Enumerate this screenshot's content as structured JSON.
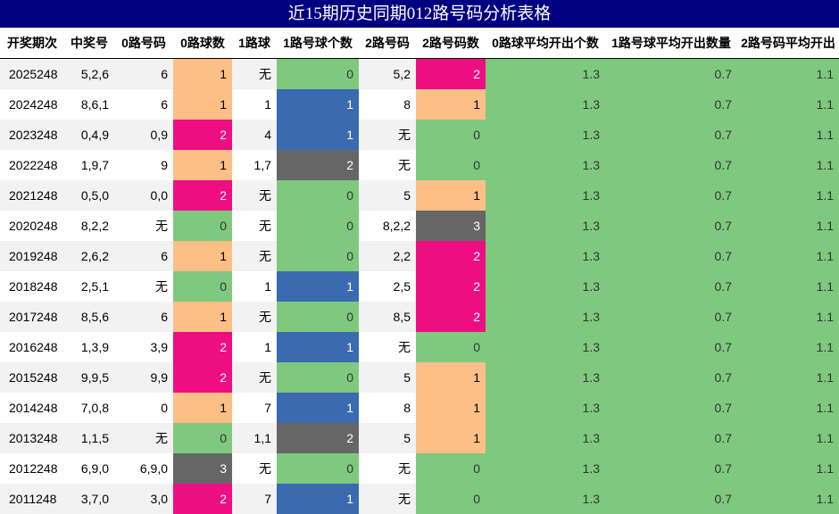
{
  "title": "近15期历史同期012路号码分析表格",
  "columns": [
    "开奖期次",
    "中奖号",
    "0路号码",
    "0路球数",
    "1路球",
    "1路号球个数",
    "2路号码",
    "2路号码数",
    "0路球平均开出个数",
    "1路号球平均开出数量",
    "2路号码平均开出"
  ],
  "colors": {
    "green": "#7ec97e",
    "peach": "#fdbf86",
    "pink": "#ee0e82",
    "blue": "#3a6ab0",
    "gray": "#666666",
    "header": "#000080"
  },
  "rows": [
    {
      "period": "2025248",
      "win": "5,2,6",
      "r0": "6",
      "c0": "1",
      "r1": "无",
      "c1": "0",
      "r2": "5,2",
      "c2": "2",
      "a0": "1.3",
      "a1": "0.7",
      "a2": "1.1"
    },
    {
      "period": "2024248",
      "win": "8,6,1",
      "r0": "6",
      "c0": "1",
      "r1": "1",
      "c1": "1",
      "r2": "8",
      "c2": "1",
      "a0": "1.3",
      "a1": "0.7",
      "a2": "1.1"
    },
    {
      "period": "2023248",
      "win": "0,4,9",
      "r0": "0,9",
      "c0": "2",
      "r1": "4",
      "c1": "1",
      "r2": "无",
      "c2": "0",
      "a0": "1.3",
      "a1": "0.7",
      "a2": "1.1"
    },
    {
      "period": "2022248",
      "win": "1,9,7",
      "r0": "9",
      "c0": "1",
      "r1": "1,7",
      "c1": "2",
      "r2": "无",
      "c2": "0",
      "a0": "1.3",
      "a1": "0.7",
      "a2": "1.1"
    },
    {
      "period": "2021248",
      "win": "0,5,0",
      "r0": "0,0",
      "c0": "2",
      "r1": "无",
      "c1": "0",
      "r2": "5",
      "c2": "1",
      "a0": "1.3",
      "a1": "0.7",
      "a2": "1.1"
    },
    {
      "period": "2020248",
      "win": "8,2,2",
      "r0": "无",
      "c0": "0",
      "r1": "无",
      "c1": "0",
      "r2": "8,2,2",
      "c2": "3",
      "a0": "1.3",
      "a1": "0.7",
      "a2": "1.1"
    },
    {
      "period": "2019248",
      "win": "2,6,2",
      "r0": "6",
      "c0": "1",
      "r1": "无",
      "c1": "0",
      "r2": "2,2",
      "c2": "2",
      "a0": "1.3",
      "a1": "0.7",
      "a2": "1.1"
    },
    {
      "period": "2018248",
      "win": "2,5,1",
      "r0": "无",
      "c0": "0",
      "r1": "1",
      "c1": "1",
      "r2": "2,5",
      "c2": "2",
      "a0": "1.3",
      "a1": "0.7",
      "a2": "1.1"
    },
    {
      "period": "2017248",
      "win": "8,5,6",
      "r0": "6",
      "c0": "1",
      "r1": "无",
      "c1": "0",
      "r2": "8,5",
      "c2": "2",
      "a0": "1.3",
      "a1": "0.7",
      "a2": "1.1"
    },
    {
      "period": "2016248",
      "win": "1,3,9",
      "r0": "3,9",
      "c0": "2",
      "r1": "1",
      "c1": "1",
      "r2": "无",
      "c2": "0",
      "a0": "1.3",
      "a1": "0.7",
      "a2": "1.1"
    },
    {
      "period": "2015248",
      "win": "9,9,5",
      "r0": "9,9",
      "c0": "2",
      "r1": "无",
      "c1": "0",
      "r2": "5",
      "c2": "1",
      "a0": "1.3",
      "a1": "0.7",
      "a2": "1.1"
    },
    {
      "period": "2014248",
      "win": "7,0,8",
      "r0": "0",
      "c0": "1",
      "r1": "7",
      "c1": "1",
      "r2": "8",
      "c2": "1",
      "a0": "1.3",
      "a1": "0.7",
      "a2": "1.1"
    },
    {
      "period": "2013248",
      "win": "1,1,5",
      "r0": "无",
      "c0": "0",
      "r1": "1,1",
      "c1": "2",
      "r2": "5",
      "c2": "1",
      "a0": "1.3",
      "a1": "0.7",
      "a2": "1.1"
    },
    {
      "period": "2012248",
      "win": "6,9,0",
      "r0": "6,9,0",
      "c0": "3",
      "r1": "无",
      "c1": "0",
      "r2": "无",
      "c2": "0",
      "a0": "1.3",
      "a1": "0.7",
      "a2": "1.1"
    },
    {
      "period": "2011248",
      "win": "3,7,0",
      "r0": "3,0",
      "c0": "2",
      "r1": "7",
      "c1": "1",
      "r2": "无",
      "c2": "0",
      "a0": "1.3",
      "a1": "0.7",
      "a2": "1.1"
    }
  ]
}
